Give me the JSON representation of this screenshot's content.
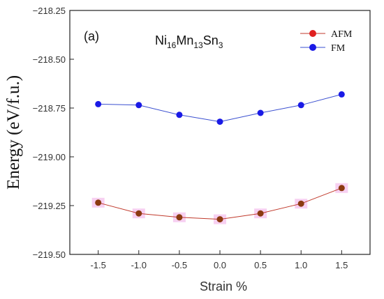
{
  "chart_data": {
    "type": "line",
    "panel_label": "(a)",
    "formula": [
      {
        "text": "Ni",
        "sub": false
      },
      {
        "text": "16",
        "sub": true
      },
      {
        "text": "Mn",
        "sub": false
      },
      {
        "text": "13",
        "sub": true
      },
      {
        "text": "Sn",
        "sub": false
      },
      {
        "text": "3",
        "sub": true
      }
    ],
    "xlabel": "Strain %",
    "ylabel": "Energy (eV/f.u.)",
    "x": [
      -1.5,
      -1.0,
      -0.5,
      0.0,
      0.5,
      1.0,
      1.5
    ],
    "xticks": [
      -1.5,
      -1.0,
      -0.5,
      0.0,
      0.5,
      1.0,
      1.5
    ],
    "xtick_labels": [
      "-1.5",
      "-1.0",
      "-0.5",
      "0.0",
      "0.5",
      "1.0",
      "1.5"
    ],
    "xlim": [
      -1.85,
      1.85
    ],
    "yticks": [
      -218.25,
      -218.5,
      -218.75,
      -219.0,
      -219.25,
      -219.5
    ],
    "ytick_labels": [
      "−218.25",
      "−218.50",
      "−218.75",
      "−219.00",
      "−219.25",
      "−219.50"
    ],
    "ylim": [
      -219.5,
      -218.25
    ],
    "legend_position": "top-right",
    "series": [
      {
        "name": "AFM",
        "line_color": "#c0392b",
        "marker_color": "#8b3a10",
        "legend_marker_color": "#e02020",
        "values": [
          -219.235,
          -219.29,
          -219.31,
          -219.32,
          -219.29,
          -219.24,
          -219.16
        ]
      },
      {
        "name": "FM",
        "line_color": "#3a4fd0",
        "marker_color": "#1a1ae6",
        "legend_marker_color": "#1a1ae6",
        "values": [
          -218.73,
          -218.735,
          -218.785,
          -218.82,
          -218.775,
          -218.735,
          -218.68
        ]
      }
    ]
  }
}
